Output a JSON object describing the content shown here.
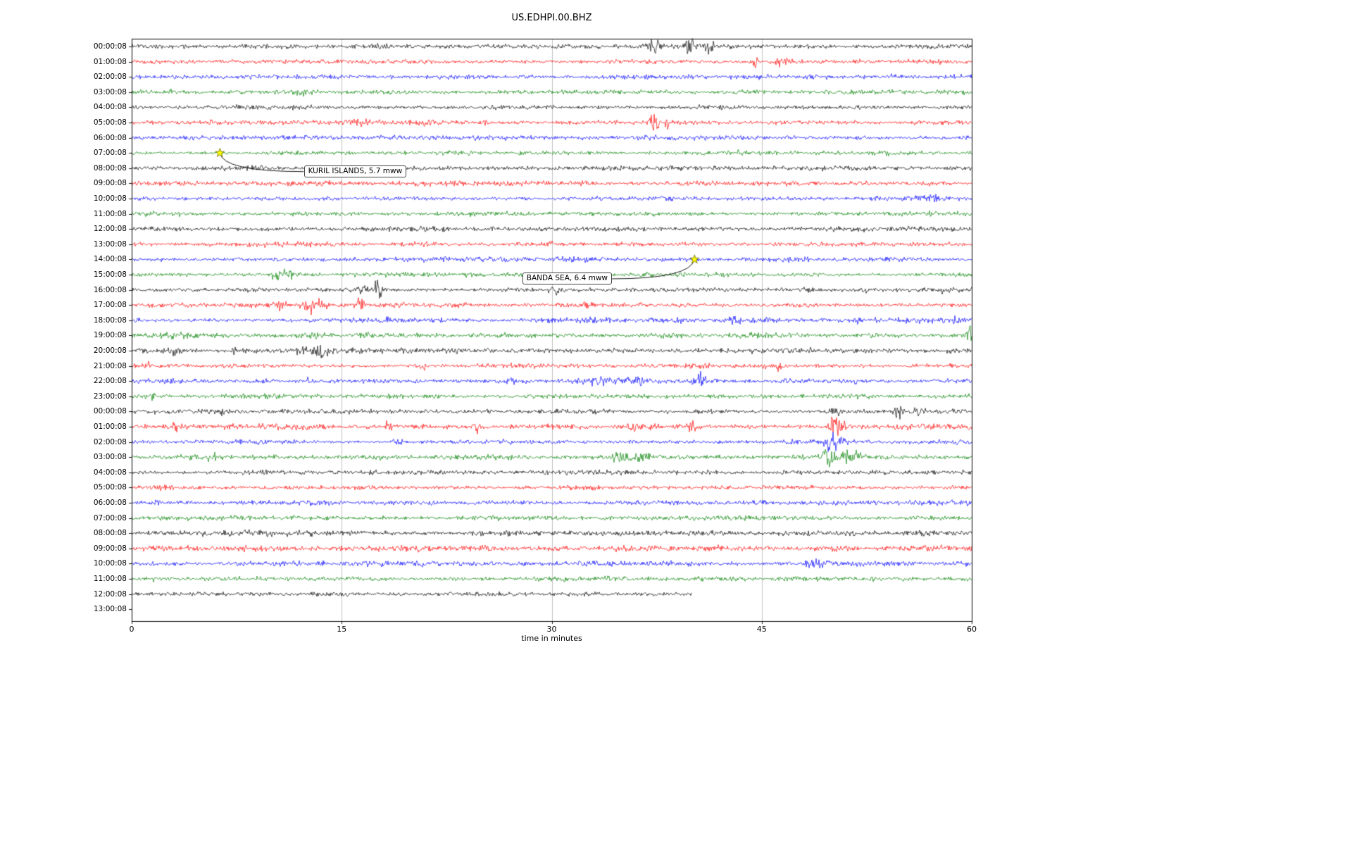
{
  "title": "US.EDHPI.00.BHZ",
  "chart_data": {
    "type": "line",
    "subtype": "helicorder-seismogram",
    "title": "US.EDHPI.00.BHZ",
    "xlabel": "time in minutes",
    "ylabel": "",
    "xlim": [
      0,
      60
    ],
    "grid": "vertical gridlines at 15, 30, 45",
    "legend": "none",
    "xticks": [
      {
        "label": "0",
        "value": 0
      },
      {
        "label": "15",
        "value": 15
      },
      {
        "label": "30",
        "value": 30
      },
      {
        "label": "45",
        "value": 45
      },
      {
        "label": "60",
        "value": 60
      }
    ],
    "color_cycle": [
      "#000000",
      "#ff0000",
      "#0000ff",
      "#008000"
    ],
    "rows": [
      {
        "label": "00:00:08",
        "color": "#000000",
        "noise": 1.0,
        "bursts": [
          {
            "x": 37.3,
            "a": 2.0,
            "w": 0.5
          },
          {
            "x": 39.8,
            "a": 3.5,
            "w": 0.3
          },
          {
            "x": 41.2,
            "a": 2.5,
            "w": 0.4
          }
        ]
      },
      {
        "label": "01:00:08",
        "color": "#ff0000",
        "noise": 1.0,
        "bursts": [
          {
            "x": 44.6,
            "a": 3.0,
            "w": 0.3
          },
          {
            "x": 46.3,
            "a": 2.5,
            "w": 0.4
          },
          {
            "x": 51.8,
            "a": 1.5,
            "w": 0.2
          }
        ]
      },
      {
        "label": "02:00:08",
        "color": "#0000ff",
        "noise": 1.0,
        "bursts": []
      },
      {
        "label": "03:00:08",
        "color": "#008000",
        "noise": 1.0,
        "bursts": [
          {
            "x": 12.5,
            "a": 1.0,
            "w": 0.8
          }
        ]
      },
      {
        "label": "04:00:08",
        "color": "#000000",
        "noise": 1.0,
        "bursts": []
      },
      {
        "label": "05:00:08",
        "color": "#ff0000",
        "noise": 1.0,
        "bursts": [
          {
            "x": 16.5,
            "a": 1.0,
            "w": 1.2
          },
          {
            "x": 20.8,
            "a": 0.8,
            "w": 0.5
          },
          {
            "x": 25.2,
            "a": 2.0,
            "w": 0.2
          },
          {
            "x": 37.4,
            "a": 5.0,
            "w": 0.35
          },
          {
            "x": 38.3,
            "a": 2.0,
            "w": 0.3
          }
        ]
      },
      {
        "label": "06:00:08",
        "color": "#0000ff",
        "noise": 1.0,
        "bursts": []
      },
      {
        "label": "07:00:08",
        "color": "#008000",
        "noise": 1.0,
        "bursts": []
      },
      {
        "label": "08:00:08",
        "color": "#000000",
        "noise": 1.05,
        "bursts": []
      },
      {
        "label": "09:00:08",
        "color": "#ff0000",
        "noise": 1.0,
        "bursts": []
      },
      {
        "label": "10:00:08",
        "color": "#0000ff",
        "noise": 1.0,
        "bursts": [
          {
            "x": 57.0,
            "a": 0.8,
            "w": 0.8
          }
        ]
      },
      {
        "label": "11:00:08",
        "color": "#008000",
        "noise": 1.0,
        "bursts": []
      },
      {
        "label": "12:00:08",
        "color": "#000000",
        "noise": 1.0,
        "bursts": []
      },
      {
        "label": "13:00:08",
        "color": "#ff0000",
        "noise": 1.0,
        "bursts": []
      },
      {
        "label": "14:00:08",
        "color": "#0000ff",
        "noise": 1.0,
        "bursts": []
      },
      {
        "label": "15:00:08",
        "color": "#008000",
        "noise": 1.0,
        "bursts": [
          {
            "x": 10.4,
            "a": 4.0,
            "w": 0.5
          },
          {
            "x": 11.5,
            "a": 2.5,
            "w": 0.6
          },
          {
            "x": 24.0,
            "a": 1.5,
            "w": 0.3
          },
          {
            "x": 30.0,
            "a": 0.8,
            "w": 0.5
          }
        ]
      },
      {
        "label": "16:00:08",
        "color": "#000000",
        "noise": 1.0,
        "bursts": [
          {
            "x": 16.6,
            "a": 2.5,
            "w": 0.3
          },
          {
            "x": 17.6,
            "a": 3.0,
            "w": 0.3
          },
          {
            "x": 30.2,
            "a": 1.5,
            "w": 0.2
          },
          {
            "x": 52.3,
            "a": 1.5,
            "w": 0.3
          },
          {
            "x": 58.0,
            "a": 1.5,
            "w": 0.2
          }
        ]
      },
      {
        "label": "17:00:08",
        "color": "#ff0000",
        "noise": 1.0,
        "bursts": [
          {
            "x": 10.6,
            "a": 1.5,
            "w": 0.4
          },
          {
            "x": 12.6,
            "a": 4.0,
            "w": 0.4
          },
          {
            "x": 13.4,
            "a": 2.0,
            "w": 0.5
          },
          {
            "x": 16.3,
            "a": 2.0,
            "w": 0.3
          },
          {
            "x": 32.6,
            "a": 1.2,
            "w": 0.3
          }
        ]
      },
      {
        "label": "18:00:08",
        "color": "#0000ff",
        "noise": 1.1,
        "bursts": [
          {
            "x": 33.5,
            "a": 1.2,
            "w": 1.0
          },
          {
            "x": 42.8,
            "a": 1.5,
            "w": 0.8
          },
          {
            "x": 52.0,
            "a": 1.2,
            "w": 0.5
          },
          {
            "x": 58.9,
            "a": 2.0,
            "w": 0.4
          }
        ]
      },
      {
        "label": "19:00:08",
        "color": "#008000",
        "noise": 1.15,
        "bursts": [
          {
            "x": 3.0,
            "a": 1.2,
            "w": 1.5
          },
          {
            "x": 13.0,
            "a": 1.5,
            "w": 0.8
          },
          {
            "x": 16.7,
            "a": 1.5,
            "w": 0.3
          },
          {
            "x": 59.9,
            "a": 6.0,
            "w": 0.25
          }
        ]
      },
      {
        "label": "20:00:08",
        "color": "#000000",
        "noise": 1.1,
        "bursts": [
          {
            "x": 3.0,
            "a": 1.5,
            "w": 0.15
          },
          {
            "x": 7.3,
            "a": 2.0,
            "w": 0.15
          },
          {
            "x": 12.2,
            "a": 2.0,
            "w": 0.4
          },
          {
            "x": 13.4,
            "a": 2.5,
            "w": 0.4
          },
          {
            "x": 14.2,
            "a": 1.5,
            "w": 0.3
          }
        ]
      },
      {
        "label": "21:00:08",
        "color": "#ff0000",
        "noise": 1.0,
        "bursts": [
          {
            "x": 1.3,
            "a": 2.0,
            "w": 0.25
          },
          {
            "x": 20.8,
            "a": 1.5,
            "w": 0.2
          },
          {
            "x": 46.2,
            "a": 2.5,
            "w": 0.2
          }
        ]
      },
      {
        "label": "22:00:08",
        "color": "#0000ff",
        "noise": 1.1,
        "bursts": [
          {
            "x": 12.6,
            "a": 1.2,
            "w": 0.3
          },
          {
            "x": 27.0,
            "a": 1.2,
            "w": 0.4
          },
          {
            "x": 33.0,
            "a": 1.5,
            "w": 1.2
          },
          {
            "x": 36.0,
            "a": 1.5,
            "w": 0.5
          },
          {
            "x": 40.5,
            "a": 4.0,
            "w": 0.4
          },
          {
            "x": 52.0,
            "a": 1.2,
            "w": 0.5
          }
        ]
      },
      {
        "label": "23:00:08",
        "color": "#008000",
        "noise": 1.0,
        "bursts": [
          {
            "x": 1.4,
            "a": 2.0,
            "w": 0.3
          }
        ]
      },
      {
        "label": "00:00:08",
        "color": "#000000",
        "noise": 1.0,
        "bursts": [
          {
            "x": 6.4,
            "a": 2.5,
            "w": 0.15
          },
          {
            "x": 25.5,
            "a": 1.5,
            "w": 0.15
          },
          {
            "x": 50.3,
            "a": 2.0,
            "w": 0.3
          },
          {
            "x": 54.8,
            "a": 2.5,
            "w": 0.3
          },
          {
            "x": 56.0,
            "a": 1.5,
            "w": 0.3
          }
        ]
      },
      {
        "label": "01:00:08",
        "color": "#ff0000",
        "noise": 1.15,
        "bursts": [
          {
            "x": 3.0,
            "a": 1.5,
            "w": 0.3
          },
          {
            "x": 18.2,
            "a": 2.5,
            "w": 0.4
          },
          {
            "x": 24.8,
            "a": 2.5,
            "w": 0.3
          },
          {
            "x": 35.8,
            "a": 2.0,
            "w": 0.5
          },
          {
            "x": 37.0,
            "a": 1.5,
            "w": 0.4
          },
          {
            "x": 40.1,
            "a": 2.0,
            "w": 0.3
          },
          {
            "x": 50.2,
            "a": 8.0,
            "w": 0.3
          },
          {
            "x": 50.8,
            "a": 4.0,
            "w": 0.3
          }
        ]
      },
      {
        "label": "02:00:08",
        "color": "#0000ff",
        "noise": 1.0,
        "bursts": [
          {
            "x": 19.0,
            "a": 1.5,
            "w": 0.3
          },
          {
            "x": 49.9,
            "a": 5.0,
            "w": 0.35
          },
          {
            "x": 50.6,
            "a": 2.0,
            "w": 0.3
          }
        ]
      },
      {
        "label": "03:00:08",
        "color": "#008000",
        "noise": 1.0,
        "bursts": [
          {
            "x": 5.7,
            "a": 1.5,
            "w": 0.3
          },
          {
            "x": 35.0,
            "a": 1.5,
            "w": 0.8
          },
          {
            "x": 36.5,
            "a": 1.2,
            "w": 0.5
          },
          {
            "x": 49.8,
            "a": 5.0,
            "w": 0.4
          },
          {
            "x": 51.0,
            "a": 3.0,
            "w": 0.5
          },
          {
            "x": 51.8,
            "a": 2.0,
            "w": 0.3
          }
        ]
      },
      {
        "label": "04:00:08",
        "color": "#000000",
        "noise": 1.05,
        "bursts": []
      },
      {
        "label": "05:00:08",
        "color": "#ff0000",
        "noise": 1.0,
        "bursts": []
      },
      {
        "label": "06:00:08",
        "color": "#0000ff",
        "noise": 1.05,
        "bursts": []
      },
      {
        "label": "07:00:08",
        "color": "#008000",
        "noise": 1.0,
        "bursts": []
      },
      {
        "label": "08:00:08",
        "color": "#000000",
        "noise": 1.25,
        "bursts": []
      },
      {
        "label": "09:00:08",
        "color": "#ff0000",
        "noise": 1.25,
        "bursts": []
      },
      {
        "label": "10:00:08",
        "color": "#0000ff",
        "noise": 1.05,
        "bursts": [
          {
            "x": 48.8,
            "a": 1.0,
            "w": 0.8
          }
        ]
      },
      {
        "label": "11:00:08",
        "color": "#008000",
        "noise": 1.0,
        "bursts": []
      },
      {
        "label": "12:00:08",
        "color": "#000000",
        "noise": 1.0,
        "end": 40,
        "bursts": []
      },
      {
        "label": "13:00:08",
        "color": "#000000",
        "noise": 0,
        "empty": true,
        "bursts": []
      }
    ],
    "events": [
      {
        "label": "KURIL ISLANDS, 5.7 mww",
        "region": "KURIL ISLANDS",
        "magnitude": "5.7 mww",
        "star_row": 7,
        "star_x": 6.3,
        "box_row": 8.25,
        "box_x": 12.3
      },
      {
        "label": "BANDA SEA, 6.4 mww",
        "region": "BANDA SEA",
        "magnitude": "6.4 mww",
        "star_row": 14,
        "star_x": 40.2,
        "box_row": 15.3,
        "box_x": 27.9
      }
    ],
    "marker": {
      "shape": "star",
      "fill": "#ffff00",
      "edge": "#666600"
    },
    "grid_color": "#b0b0b0",
    "frame_color": "#000000"
  }
}
